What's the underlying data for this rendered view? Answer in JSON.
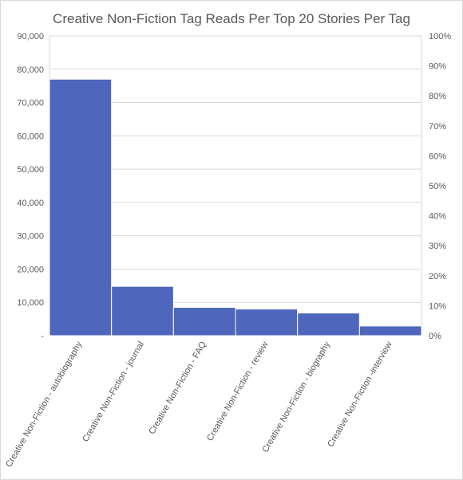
{
  "chart_data": {
    "type": "bar",
    "title": "Creative Non-Fiction Tag Reads Per Top 20 Stories Per Tag",
    "xlabel": "",
    "ylabel": "",
    "categories": [
      "Creative Non-Fiction - autobiography",
      "Creative Non-Fiction - journal",
      "Creative Non-Fiction - FAQ",
      "Creative Non-Fiction - review",
      "Creative Non-Fiction - biography",
      "Creative Non-Fiction -interview"
    ],
    "values": [
      77000,
      14800,
      8500,
      8000,
      6800,
      2900
    ],
    "ylim": [
      0,
      90000
    ],
    "y_ticks": [
      "-",
      "10,000",
      "20,000",
      "30,000",
      "40,000",
      "50,000",
      "60,000",
      "70,000",
      "80,000",
      "90,000"
    ],
    "y2_ticks": [
      "0%",
      "10%",
      "20%",
      "30%",
      "40%",
      "50%",
      "60%",
      "70%",
      "80%",
      "90%",
      "100%"
    ],
    "grid": true,
    "bar_color": "#4e66bb"
  }
}
